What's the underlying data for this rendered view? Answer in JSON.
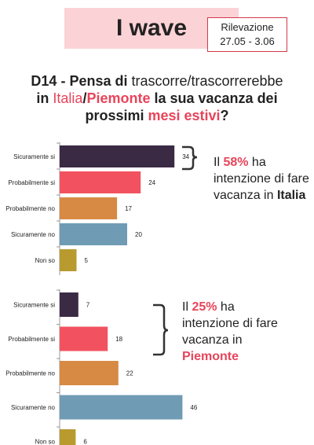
{
  "header": {
    "title": "I wave",
    "survey_label": "Rilevazione",
    "survey_dates": "27.05 - 3.06"
  },
  "question": {
    "prefix": "D14 - Pensa di ",
    "verb": "trascorre/trascorrerebbe",
    "line2_a": "in ",
    "italia": "Italia",
    "slash": "/",
    "piemonte": "Piemonte",
    "line2_b": " la sua vacanza dei",
    "line3_a": "prossimi ",
    "mesi_estivi": "mesi estivi",
    "line3_b": "?"
  },
  "notes": {
    "italia": {
      "pre": "Il ",
      "pct": "58%",
      "mid": " ha",
      "line2": "intenzione di fare",
      "line3_pre": "vacanza in ",
      "place": "Italia"
    },
    "piemonte": {
      "pre": "Il ",
      "pct": "25%",
      "mid": " ha",
      "line2": "intenzione di fare",
      "line3": "vacanza in",
      "place": "Piemonte"
    }
  },
  "chart_data": [
    {
      "type": "bar",
      "orientation": "horizontal",
      "categories": [
        "Sicuramente si",
        "Probabilmente si",
        "Probabilmente no",
        "Sicuramente no",
        "Non so"
      ],
      "values": [
        34,
        24,
        17,
        20,
        5
      ],
      "colors": [
        "#3b2a44",
        "#f2525f",
        "#d78a44",
        "#6f9bb4",
        "#b89a2e"
      ],
      "xlim": [
        0,
        46
      ],
      "title": "",
      "xlabel": "",
      "ylabel": ""
    },
    {
      "type": "bar",
      "orientation": "horizontal",
      "categories": [
        "Sicuramente si",
        "Probabilmente si",
        "Probabilmente no",
        "Sicuramente no",
        "Non so"
      ],
      "values": [
        7,
        18,
        22,
        46,
        6
      ],
      "colors": [
        "#3b2a44",
        "#f2525f",
        "#d78a44",
        "#6f9bb4",
        "#b89a2e"
      ],
      "xlim": [
        0,
        46
      ],
      "title": "",
      "xlabel": "",
      "ylabel": ""
    }
  ]
}
